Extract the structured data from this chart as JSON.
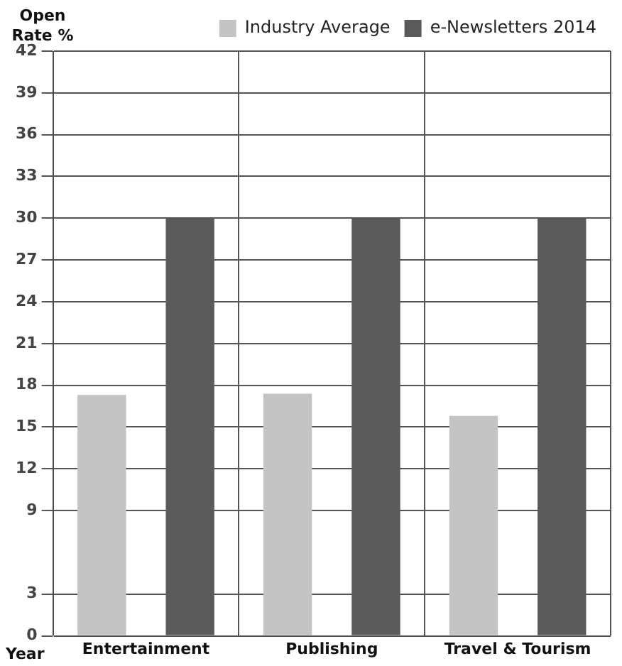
{
  "chart_data": {
    "type": "bar",
    "xlabel": "Year",
    "ylabel": "Open Rate %",
    "categories": [
      "Entertainment",
      "Publishing",
      "Travel & Tourism"
    ],
    "series": [
      {
        "name": "Industry Average",
        "color": "#c4c4c4",
        "values": [
          17.3,
          17.4,
          15.8
        ]
      },
      {
        "name": "e-Newsletters 2014",
        "color": "#5a5a5a",
        "values": [
          30,
          30,
          30
        ]
      }
    ],
    "ylim": [
      0,
      42
    ],
    "yticks": [
      0,
      3,
      9,
      12,
      15,
      18,
      21,
      24,
      27,
      30,
      33,
      36,
      39,
      42
    ],
    "grid": true,
    "legend": "top"
  }
}
